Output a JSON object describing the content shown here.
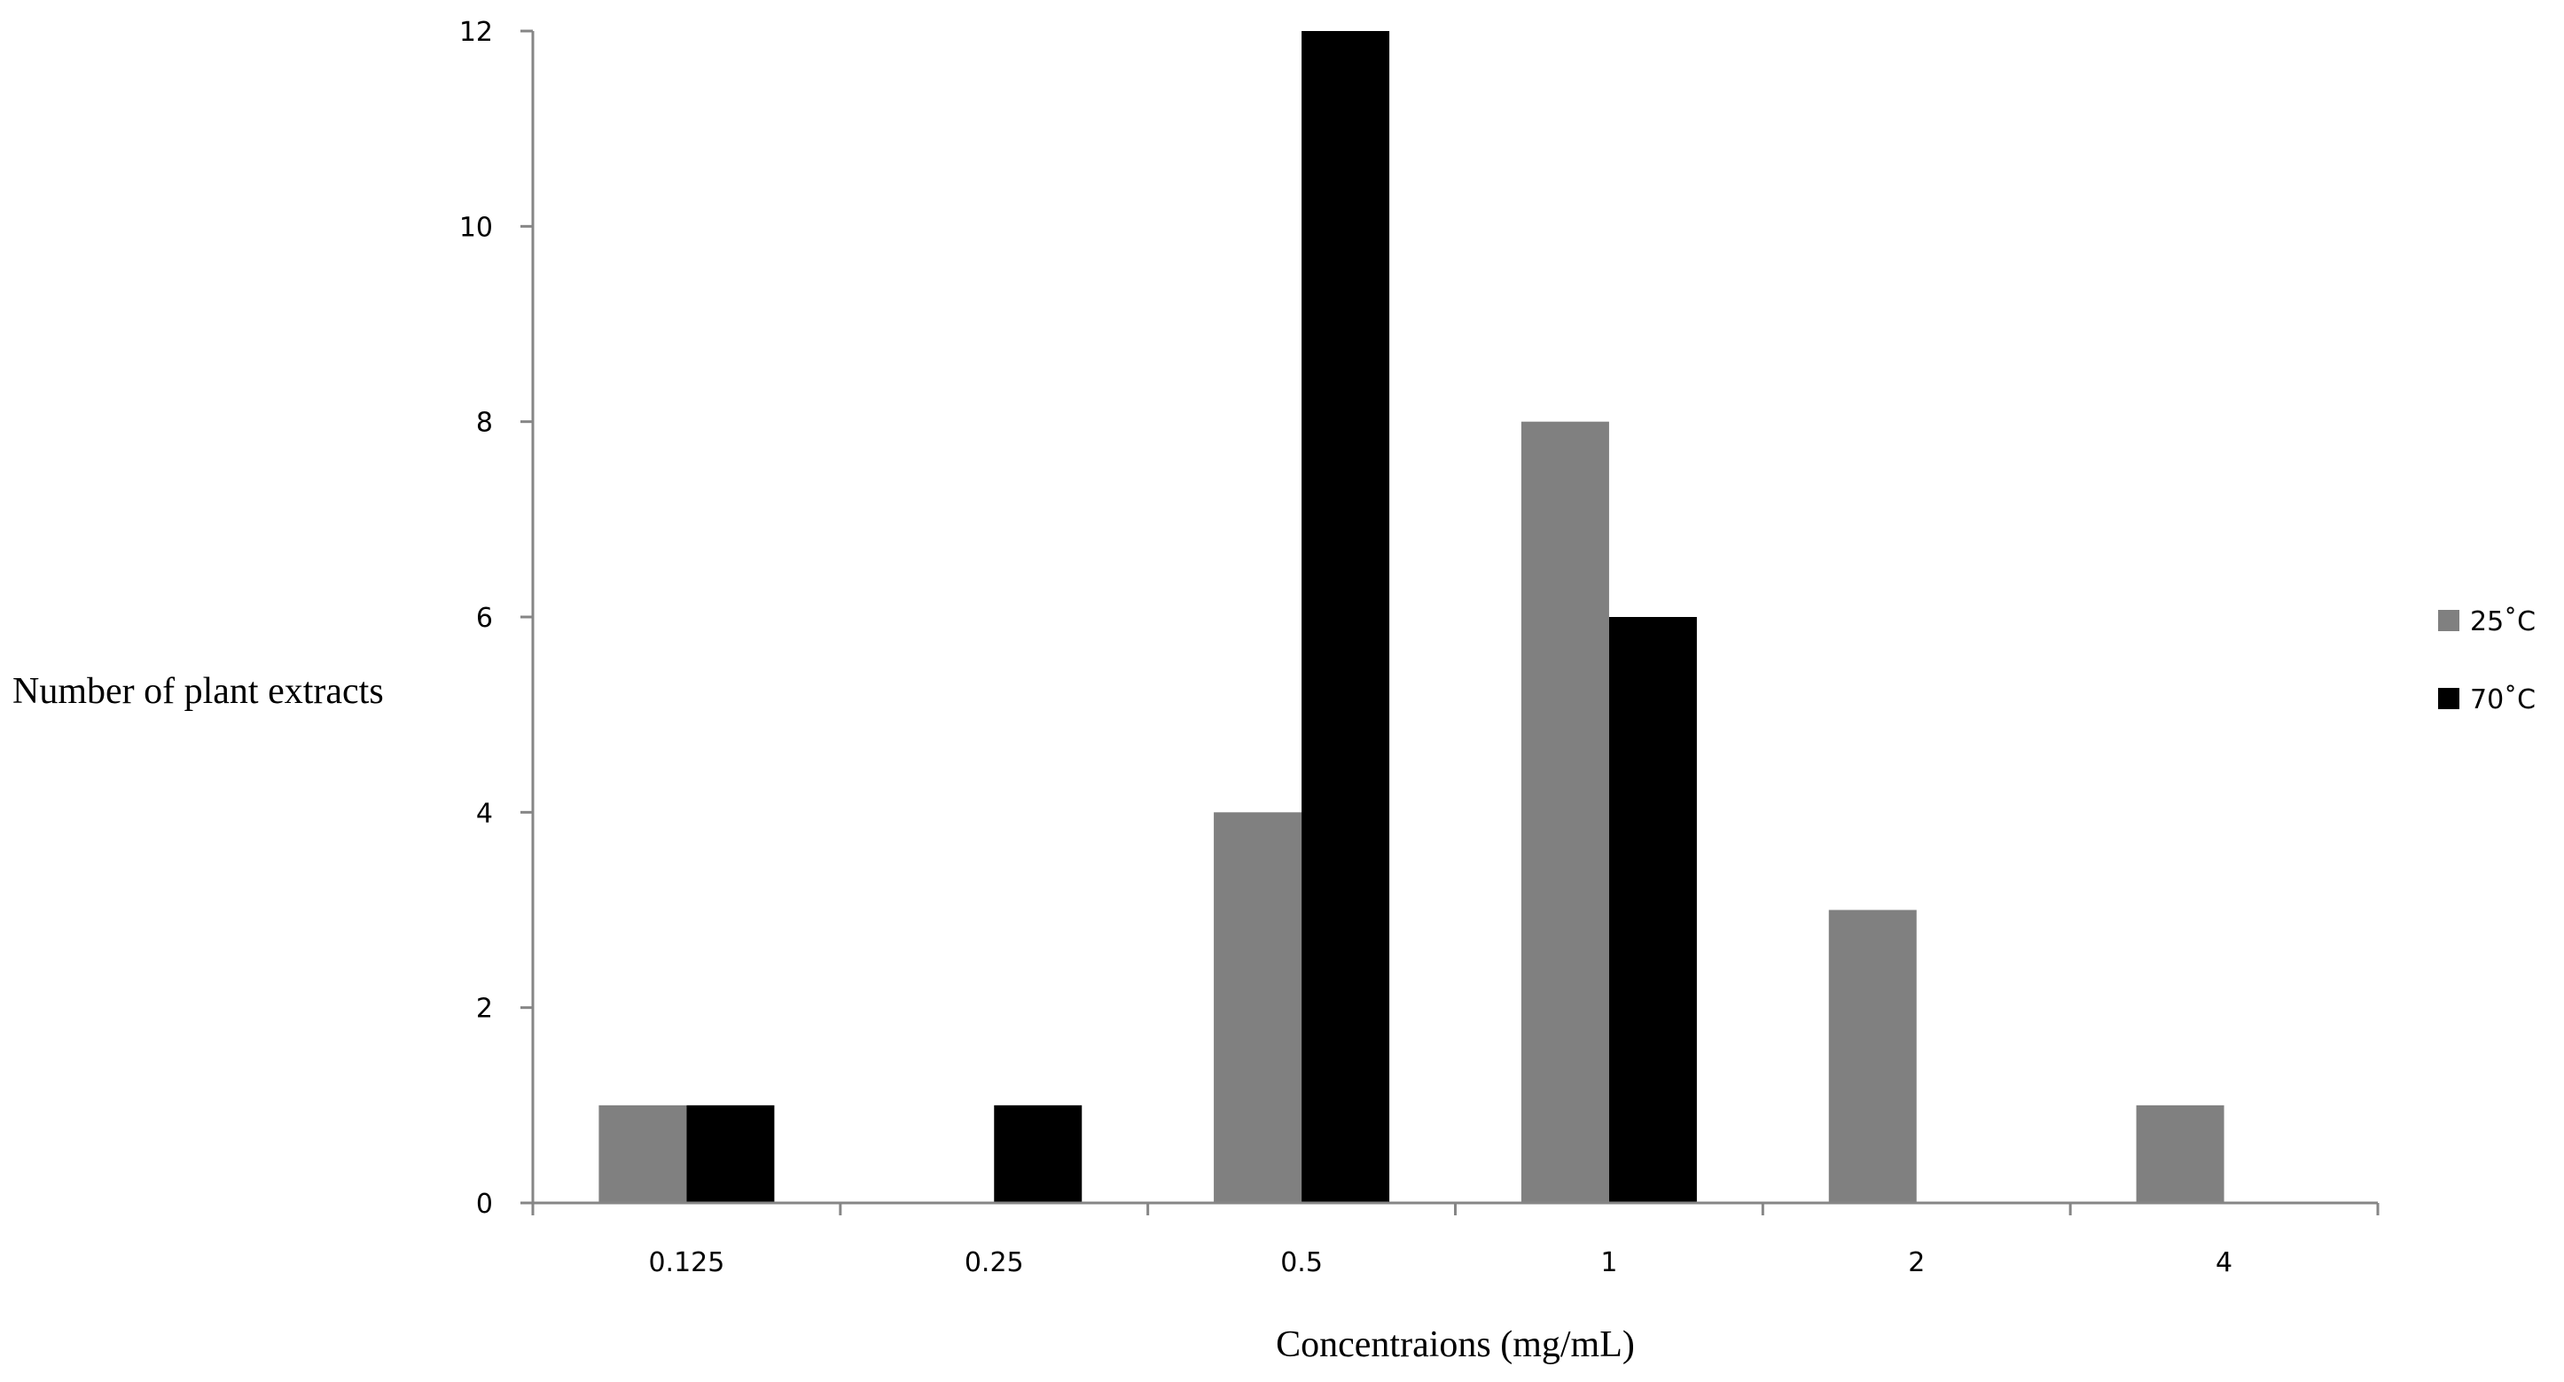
{
  "chart_data": {
    "type": "bar",
    "title": "",
    "xlabel": "Concentraions (mg/mL)",
    "ylabel": "Number of plant extracts",
    "categories": [
      "0.125",
      "0.25",
      "0.5",
      "1",
      "2",
      "4"
    ],
    "series": [
      {
        "name": "25˚C",
        "color": "#808080",
        "values": [
          1,
          0,
          4,
          8,
          3,
          1
        ]
      },
      {
        "name": "70˚C",
        "color": "#000000",
        "values": [
          1,
          1,
          12,
          6,
          0,
          0
        ]
      }
    ],
    "ylim": [
      0,
      12
    ],
    "yticks": [
      "0",
      "2",
      "4",
      "6",
      "8",
      "10",
      "12"
    ],
    "grid": false,
    "legend_position": "right"
  }
}
